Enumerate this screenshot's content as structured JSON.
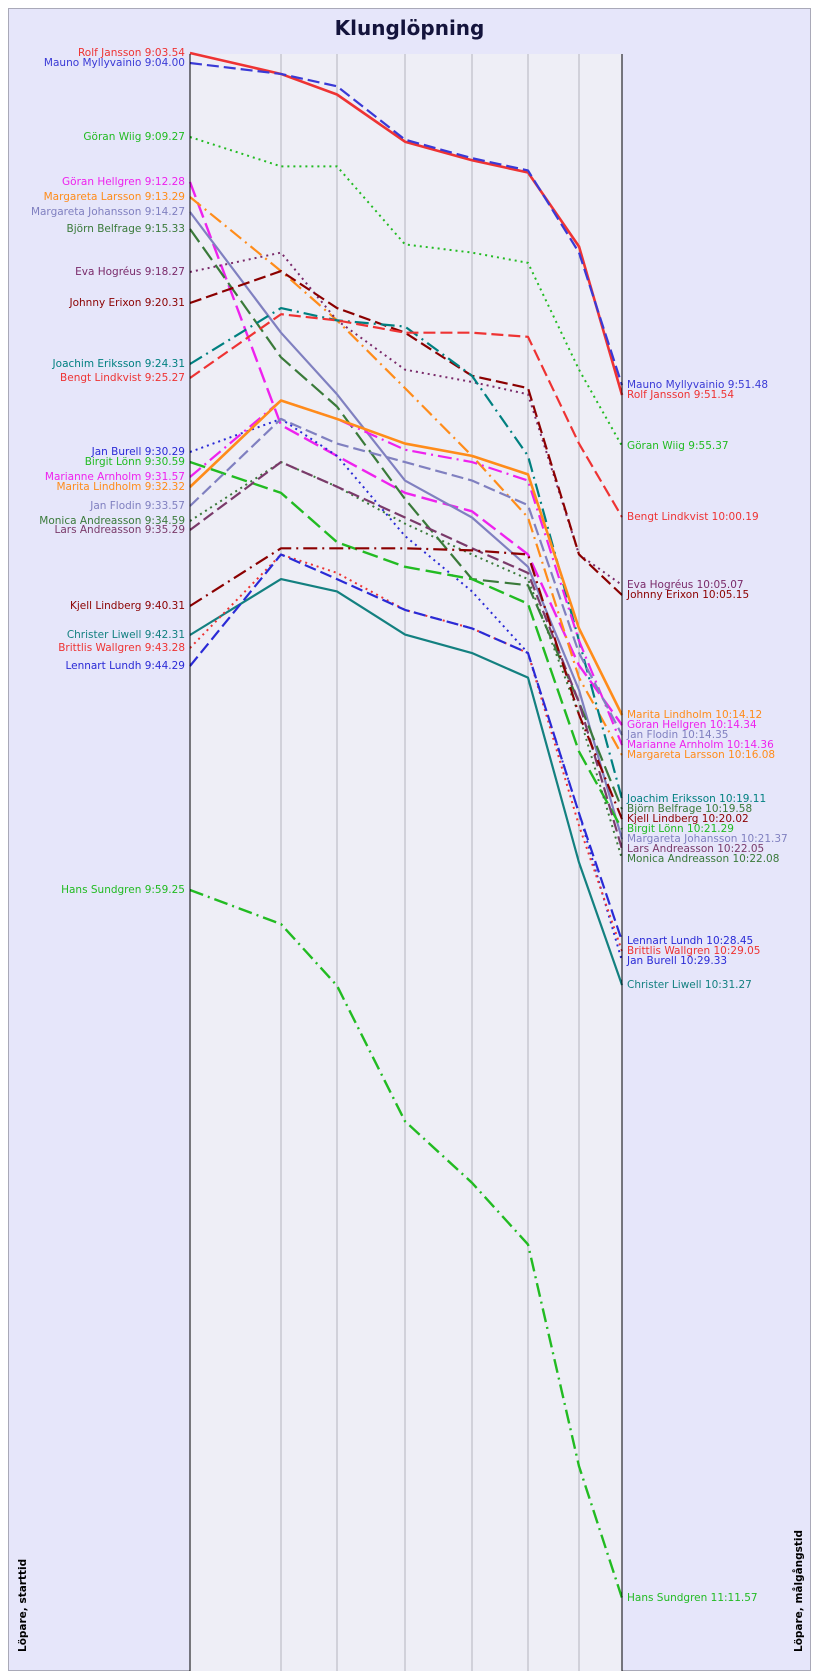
{
  "title": "Klunglöpning",
  "left_axis_label": "Löpare, starttid",
  "right_axis_label": "Löpare, målgångstid",
  "chart_data": {
    "type": "line",
    "title": "Klunglöpning",
    "xlabel_left": "Löpare, starttid",
    "xlabel_right": "Löpare, målgångstid",
    "y_axis": "time of day, increasing downward",
    "ylim": [
      "9:03:00",
      "11:14:00"
    ],
    "grid": "vertical lines at control points",
    "controls": 8,
    "series": [
      {
        "name": "Rolf Jansson",
        "color": "#ee3333",
        "dash": "solid",
        "width": 2.6,
        "start": "9:03.54",
        "finish": "9:51.54",
        "start_label": "Rolf Jansson 9:03.54",
        "finish_label": "Rolf Jansson 9:51.54",
        "times": [
          "9:03:54",
          "9:06:00",
          "9:07:40",
          "9:11:30",
          "9:13:00",
          "9:14:00",
          "9:20:00",
          "9:51:54"
        ]
      },
      {
        "name": "Mauno Myllyvainio",
        "color": "#3a3ad6",
        "dash": "long",
        "width": 2.2,
        "start": "9:04.00",
        "finish": "9:51.48",
        "start_label": "Mauno Myllyvainio 9:04.00",
        "finish_label": "Mauno Myllyvainio 9:51.48",
        "times": [
          "9:04:00",
          "9:06:00",
          "9:07:00",
          "9:11:20",
          "9:12:50",
          "9:13:50",
          "9:20:30",
          "9:51:48"
        ]
      },
      {
        "name": "Göran Wiig",
        "color": "#22bb22",
        "dash": "dot",
        "width": 2,
        "start": "9:09.27",
        "finish": "9:55.37",
        "start_label": "Göran Wiig 9:09.27",
        "finish_label": "Göran Wiig 9:55.37",
        "times": [
          "9:09:27",
          "9:13:30",
          "9:13:30",
          "9:19:50",
          "9:20:30",
          "9:21:20",
          "9:30:00",
          "9:55:37"
        ]
      },
      {
        "name": "Göran Hellgren",
        "color": "#ee22ee",
        "dash": "longdash",
        "width": 2.4,
        "start": "9:12.28",
        "finish": "10:14.34",
        "start_label": "Göran Hellgren 9:12.28",
        "finish_label": "Göran Hellgren 10:14.34",
        "times": [
          "9:12:28",
          "9:34:30",
          "9:37:00",
          "9:40:00",
          "9:41:30",
          "9:45:00",
          "9:54:00",
          "10:14:34"
        ]
      },
      {
        "name": "Margareta Larsson",
        "color": "#ff8c1a",
        "dash": "dashdot",
        "width": 2.2,
        "start": "9:13.29",
        "finish": "10:16.08",
        "start_label": "Margareta Larsson 9:13.29",
        "finish_label": "Margareta Larsson 10:16.08",
        "times": [
          "9:13:29",
          "9:22:00",
          "9:26:00",
          "9:31:30",
          "9:37:00",
          "9:42:00",
          "9:55:00",
          "10:16:08"
        ]
      },
      {
        "name": "Margareta Johansson",
        "color": "#8080c0",
        "dash": "solid",
        "width": 2.2,
        "start": "9:14.27",
        "finish": "10:21.37",
        "start_label": "Margareta Johansson 9:14.27",
        "finish_label": "Margareta Johansson 10:21.37",
        "times": [
          "9:14:27",
          "9:27:00",
          "9:32:00",
          "9:39:00",
          "9:42:00",
          "9:46:00",
          "9:56:00",
          "10:21:37"
        ]
      },
      {
        "name": "Björn Belfrage",
        "color": "#3a7a3a",
        "dash": "longdash",
        "width": 2.2,
        "start": "9:15.33",
        "finish": "10:19.58",
        "start_label": "Björn Belfrage 9:15.33",
        "finish_label": "Björn Belfrage 10:19.58",
        "times": [
          "9:15:33",
          "9:29:00",
          "9:33:00",
          "9:40:30",
          "9:47:00",
          "9:47:30",
          "9:57:00",
          "10:19:58"
        ]
      },
      {
        "name": "Eva Hogréus",
        "color": "#7a2a6a",
        "dash": "dot",
        "width": 2,
        "start": "9:18.27",
        "finish": "10:05.07",
        "start_label": "Eva Hogréus 9:18.27",
        "finish_label": "Eva Hogréus 10:05.07",
        "times": [
          "9:18:27",
          "9:20:30",
          "9:26:00",
          "9:30:00",
          "9:31:00",
          "9:32:00",
          "9:45:00",
          "10:05:07"
        ]
      },
      {
        "name": "Johnny Erixon",
        "color": "#8b0000",
        "dash": "long",
        "width": 2.2,
        "start": "9:20.31",
        "finish": "10:05.15",
        "start_label": "Johnny Erixon 9:20.31",
        "finish_label": "Johnny Erixon 10:05.15",
        "times": [
          "9:20:31",
          "9:22:00",
          "9:25:00",
          "9:27:00",
          "9:30:30",
          "9:31:30",
          "9:45:00",
          "10:05:15"
        ]
      },
      {
        "name": "Joachim Eriksson",
        "color": "#008080",
        "dash": "dashdot",
        "width": 2.2,
        "start": "9:24.31",
        "finish": "10:19.11",
        "start_label": "Joachim Eriksson 9:24.31",
        "finish_label": "Joachim Eriksson 10:19.11",
        "times": [
          "9:24:31",
          "9:25:00",
          "9:26:00",
          "9:26:30",
          "9:30:30",
          "9:37:00",
          "9:52:00",
          "10:19:11"
        ]
      },
      {
        "name": "Bengt Lindkvist",
        "color": "#ee3333",
        "dash": "long",
        "width": 2.2,
        "start": "9:25.27",
        "finish": "10:00.19",
        "start_label": "Bengt Lindkvist 9:25.27",
        "finish_label": "Bengt Lindkvist 10:00.19",
        "times": [
          "9:25:27",
          "9:25:30",
          "9:26:00",
          "9:27:00",
          "9:27:00",
          "9:27:20",
          "9:36:00",
          "10:00:19"
        ]
      },
      {
        "name": "Jan Burell",
        "color": "#2a2ad6",
        "dash": "dot",
        "width": 2,
        "start": "9:30.29",
        "finish": "10:29.33",
        "start_label": "Jan Burell 9:30.29",
        "finish_label": "Jan Burell 10:29.33",
        "times": [
          "9:30:29",
          "9:34:00",
          "9:37:00",
          "9:43:30",
          "9:48:00",
          "9:53:00",
          "10:06:00",
          "10:29:33"
        ]
      },
      {
        "name": "Birgit Lönn",
        "color": "#22bb22",
        "dash": "longdash",
        "width": 2.4,
        "start": "9:30.59",
        "finish": "10:21.29",
        "start_label": "Birgit Lönn 9:30.59",
        "finish_label": "Birgit Lönn 10:21.29",
        "times": [
          "9:30:59",
          "9:40:00",
          "9:44:00",
          "9:46:00",
          "9:47:00",
          "9:49:00",
          "10:01:00",
          "10:21:29"
        ]
      },
      {
        "name": "Marianne Arnholm",
        "color": "#ee22ee",
        "dash": "dashdot",
        "width": 2.2,
        "start": "9:31.57",
        "finish": "10:14.36",
        "start_label": "Marianne Arnholm 9:31.57",
        "finish_label": "Marianne Arnholm 10:14.36",
        "times": [
          "9:31:57",
          "9:32:30",
          "9:34:00",
          "9:36:30",
          "9:37:30",
          "9:39:00",
          "9:52:00",
          "10:14:36"
        ]
      },
      {
        "name": "Marita Lindholm",
        "color": "#ff8c1a",
        "dash": "solid",
        "width": 2.6,
        "start": "9:32.32",
        "finish": "10:14.12",
        "start_label": "Marita Lindholm 9:32.32",
        "finish_label": "Marita Lindholm 10:14.12",
        "times": [
          "9:32:32",
          "9:32:30",
          "9:34:00",
          "9:36:00",
          "9:37:00",
          "9:38:30",
          "9:51:00",
          "10:14:12"
        ]
      },
      {
        "name": "Jan Flodin",
        "color": "#8080c0",
        "dash": "long",
        "width": 2.2,
        "start": "9:33.57",
        "finish": "10:14.35",
        "start_label": "Jan Flodin 9:33.57",
        "finish_label": "Jan Flodin 10:14.35",
        "times": [
          "9:33:57",
          "9:34:00",
          "9:36:00",
          "9:37:30",
          "9:39:00",
          "9:41:00",
          "9:53:00",
          "10:14:35"
        ]
      },
      {
        "name": "Monica Andreasson",
        "color": "#3a7a3a",
        "dash": "dot",
        "width": 2,
        "start": "9:34.59",
        "finish": "10:22.08",
        "start_label": "Monica Andreasson 9:34.59",
        "finish_label": "Monica Andreasson 10:22.08",
        "times": [
          "9:34:59",
          "9:37:30",
          "9:39:30",
          "9:42:30",
          "9:45:00",
          "9:47:00",
          "9:58:00",
          "10:22:08"
        ]
      },
      {
        "name": "Lars Andreasson",
        "color": "#7a3a6a",
        "dash": "long",
        "width": 2.2,
        "start": "9:35.29",
        "finish": "10:22.05",
        "start_label": "Lars Andreasson 9:35.29",
        "finish_label": "Lars Andreasson 10:22.05",
        "times": [
          "9:35:29",
          "9:37:30",
          "9:39:30",
          "9:42:00",
          "9:44:30",
          "9:46:30",
          "9:57:00",
          "10:22:05"
        ]
      },
      {
        "name": "Kjell Lindberg",
        "color": "#8b0000",
        "dash": "dashdot",
        "width": 2.2,
        "start": "9:40.31",
        "finish": "10:20.02",
        "start_label": "Kjell Lindberg 9:40.31",
        "finish_label": "Kjell Lindberg 10:20.02",
        "times": [
          "9:40:31",
          "9:44:30",
          "9:44:30",
          "9:44:30",
          "9:44:40",
          "9:45:00",
          "9:58:00",
          "10:20:02"
        ]
      },
      {
        "name": "Christer Liwell",
        "color": "#138080",
        "dash": "solid",
        "width": 2.2,
        "start": "9:42.31",
        "finish": "10:31.27",
        "start_label": "Christer Liwell 9:42.31",
        "finish_label": "Christer Liwell 10:31.27",
        "times": [
          "9:42:31",
          "9:47:00",
          "9:48:00",
          "9:51:30",
          "9:53:00",
          "9:55:00",
          "10:10:00",
          "10:31:27"
        ]
      },
      {
        "name": "Brittlis Wallgren",
        "color": "#ee3333",
        "dash": "dot",
        "width": 2,
        "start": "9:43.28",
        "finish": "10:29.05",
        "start_label": "Brittlis Wallgren 9:43.28",
        "finish_label": "Brittlis Wallgren 10:29.05",
        "times": [
          "9:43:28",
          "9:45:00",
          "9:46:30",
          "9:49:30",
          "9:51:00",
          "9:53:00",
          "10:07:00",
          "10:29:05"
        ]
      },
      {
        "name": "Lennart Lundh",
        "color": "#2a2ad6",
        "dash": "long",
        "width": 2.2,
        "start": "9:44.29",
        "finish": "10:28.45",
        "start_label": "Lennart Lundh 9:44.29",
        "finish_label": "Lennart Lundh 10:28.45",
        "times": [
          "9:44:29",
          "9:45:00",
          "9:47:00",
          "9:49:30",
          "9:51:00",
          "9:53:00",
          "10:06:00",
          "10:28:45"
        ]
      },
      {
        "name": "Hans Sundgren",
        "color": "#22bb22",
        "dash": "dashdot",
        "width": 2.4,
        "start": "9:59.25",
        "finish": "11:11.57",
        "start_label": "Hans Sundgren 9:59.25",
        "finish_label": "Hans Sundgren 11:11.57",
        "times": [
          "9:59:25",
          "10:15:00",
          "10:20:00",
          "10:31:00",
          "10:36:00",
          "10:41:00",
          "10:59:00",
          "11:11:57"
        ]
      }
    ]
  }
}
